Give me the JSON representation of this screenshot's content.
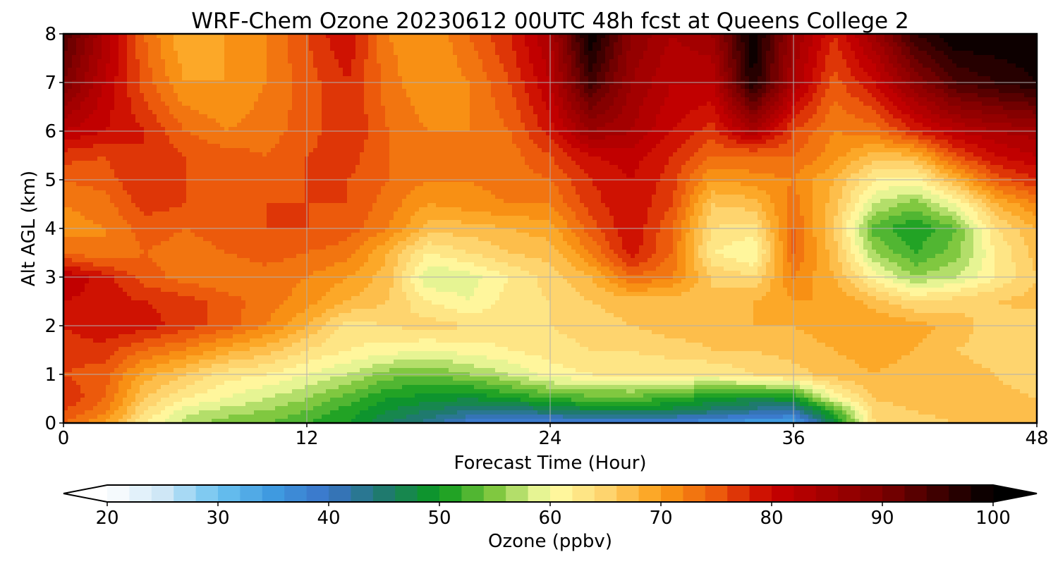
{
  "chart_data": {
    "type": "heatmap",
    "title": "WRF-Chem Ozone  20230612 00UTC 48h fcst at Queens College 2",
    "xlabel": "Forecast Time (Hour)",
    "ylabel": "Alt AGL (km)",
    "xlim": [
      0,
      48
    ],
    "ylim": [
      0,
      8
    ],
    "x_ticks": [
      "0",
      "12",
      "24",
      "36",
      "48"
    ],
    "y_ticks": [
      "0",
      "1",
      "2",
      "3",
      "4",
      "5",
      "6",
      "7",
      "8"
    ],
    "grid": true,
    "x_hours": [
      0,
      2,
      4,
      6,
      8,
      10,
      12,
      14,
      16,
      18,
      20,
      22,
      24,
      26,
      28,
      30,
      32,
      34,
      36,
      38,
      40,
      42,
      44,
      46,
      48
    ],
    "y_km": [
      0,
      0.25,
      0.5,
      1,
      1.5,
      2,
      2.5,
      3,
      3.5,
      4,
      4.5,
      5,
      5.5,
      6,
      7,
      8
    ],
    "ozone_ppbv": [
      [
        74,
        70,
        62,
        57,
        55,
        54,
        52,
        50,
        46,
        43,
        39,
        38,
        37,
        38,
        38,
        37,
        36,
        34,
        33,
        48,
        64,
        65,
        66,
        67,
        68
      ],
      [
        76,
        73,
        64,
        59,
        57,
        56,
        54,
        51,
        48,
        46,
        44,
        43,
        46,
        47,
        47,
        47,
        45,
        43,
        42,
        52,
        65,
        66,
        67,
        67,
        68
      ],
      [
        78,
        74,
        66,
        62,
        60,
        58,
        56,
        53,
        50,
        49,
        48,
        50,
        52,
        53,
        53,
        52,
        49,
        48,
        49,
        60,
        66,
        67,
        67,
        67,
        66
      ],
      [
        76,
        75,
        69,
        66,
        63,
        62,
        60,
        58,
        55,
        54,
        56,
        58,
        61,
        62,
        63,
        62,
        62,
        64,
        65,
        67,
        68,
        67,
        67,
        66,
        64
      ],
      [
        77,
        77,
        74,
        72,
        69,
        67,
        64,
        62,
        61,
        60,
        61,
        62,
        63,
        64,
        64,
        65,
        66,
        66,
        67,
        68,
        69,
        68,
        66,
        65,
        64
      ],
      [
        78,
        80,
        79,
        77,
        75,
        72,
        68,
        63,
        64,
        65,
        64,
        63,
        64,
        65,
        66,
        67,
        67,
        68,
        68,
        69,
        70,
        69,
        67,
        65,
        64
      ],
      [
        80,
        79,
        78,
        77,
        75,
        73,
        71,
        68,
        66,
        62,
        60,
        63,
        64,
        66,
        67,
        67,
        66,
        68,
        70,
        70,
        67,
        64,
        65,
        66,
        67
      ],
      [
        82,
        79,
        75,
        73,
        72,
        73,
        72,
        70,
        67,
        58,
        59,
        62,
        65,
        68,
        74,
        72,
        66,
        64,
        72,
        68,
        61,
        56,
        58,
        62,
        66
      ],
      [
        74,
        72,
        74,
        73,
        74,
        75,
        74,
        73,
        68,
        62,
        64,
        66,
        67,
        72,
        79,
        74,
        62,
        60,
        74,
        67,
        56,
        52,
        55,
        62,
        67
      ],
      [
        71,
        72,
        75,
        74,
        75,
        76,
        76,
        75,
        72,
        67,
        67,
        68,
        69,
        75,
        80,
        74,
        64,
        63,
        74,
        66,
        53,
        50,
        54,
        64,
        68
      ],
      [
        72,
        73,
        77,
        76,
        76,
        76,
        76,
        76,
        73,
        70,
        71,
        72,
        72,
        77,
        80,
        76,
        66,
        67,
        73,
        67,
        58,
        55,
        60,
        68,
        72
      ],
      [
        74,
        75,
        78,
        76,
        75,
        75,
        76,
        76,
        74,
        72,
        72,
        73,
        74,
        78,
        80,
        77,
        70,
        71,
        72,
        68,
        62,
        61,
        68,
        75,
        78
      ],
      [
        77,
        76,
        78,
        76,
        75,
        74,
        76,
        77,
        74,
        73,
        72,
        73,
        76,
        80,
        81,
        78,
        74,
        74,
        74,
        71,
        67,
        68,
        76,
        80,
        82
      ],
      [
        82,
        80,
        78,
        74,
        72,
        73,
        75,
        78,
        74,
        72,
        72,
        74,
        79,
        86,
        84,
        80,
        77,
        84,
        76,
        72,
        73,
        78,
        82,
        84,
        85
      ],
      [
        90,
        82,
        75,
        70,
        70,
        72,
        75,
        78,
        73,
        70,
        72,
        76,
        82,
        95,
        86,
        82,
        82,
        98,
        84,
        75,
        80,
        88,
        94,
        96,
        98
      ],
      [
        94,
        84,
        74,
        68,
        70,
        72,
        76,
        80,
        72,
        70,
        74,
        78,
        84,
        100,
        88,
        84,
        86,
        100,
        86,
        78,
        86,
        96,
        100,
        100,
        100
      ]
    ]
  },
  "colorbar": {
    "label": "Ozone  (ppbv)",
    "min": 20,
    "max": 100,
    "step": 2,
    "tick_values": [
      20,
      30,
      40,
      50,
      60,
      70,
      80,
      90,
      100
    ],
    "tick_labels": [
      "20",
      "30",
      "40",
      "50",
      "60",
      "70",
      "80",
      "90",
      "100"
    ],
    "extend": "both",
    "color_stops": [
      [
        20,
        "#ffffff"
      ],
      [
        25,
        "#cfe7f6"
      ],
      [
        30,
        "#6cc3f0"
      ],
      [
        35,
        "#3f9ae0"
      ],
      [
        40,
        "#3a73c8"
      ],
      [
        45,
        "#1f7a6e"
      ],
      [
        50,
        "#0a9a1e"
      ],
      [
        55,
        "#80c840"
      ],
      [
        60,
        "#ffffa8"
      ],
      [
        65,
        "#fed46e"
      ],
      [
        70,
        "#fb9d16"
      ],
      [
        75,
        "#ec5a0c"
      ],
      [
        80,
        "#c80000"
      ],
      [
        90,
        "#7d0000"
      ],
      [
        100,
        "#000000"
      ]
    ]
  }
}
